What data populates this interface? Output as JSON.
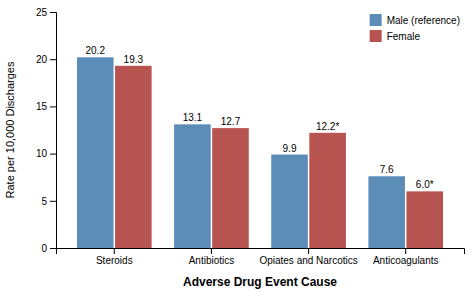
{
  "chart_data": {
    "type": "bar",
    "categories": [
      "Steroids",
      "Antibiotics",
      "Opiates and Narcotics",
      "Anticoagulants"
    ],
    "series": [
      {
        "name": "Male (reference)",
        "color": "#5B8DB8",
        "values": [
          20.2,
          13.1,
          9.9,
          7.6
        ]
      },
      {
        "name": "Female",
        "color": "#B85450",
        "values": [
          19.3,
          12.7,
          12.2,
          6.0
        ],
        "value_labels": [
          "19.3",
          "12.7",
          "12.2*",
          "6.0*"
        ]
      }
    ],
    "xlabel": "Adverse Drug Event Cause",
    "ylabel": "Rate per 10,000 Discharges",
    "ylim": [
      0,
      25
    ],
    "yticks": [
      0,
      5,
      10,
      15,
      20,
      25
    ],
    "data_labels": true,
    "legend": "upper right",
    "grid": false
  }
}
